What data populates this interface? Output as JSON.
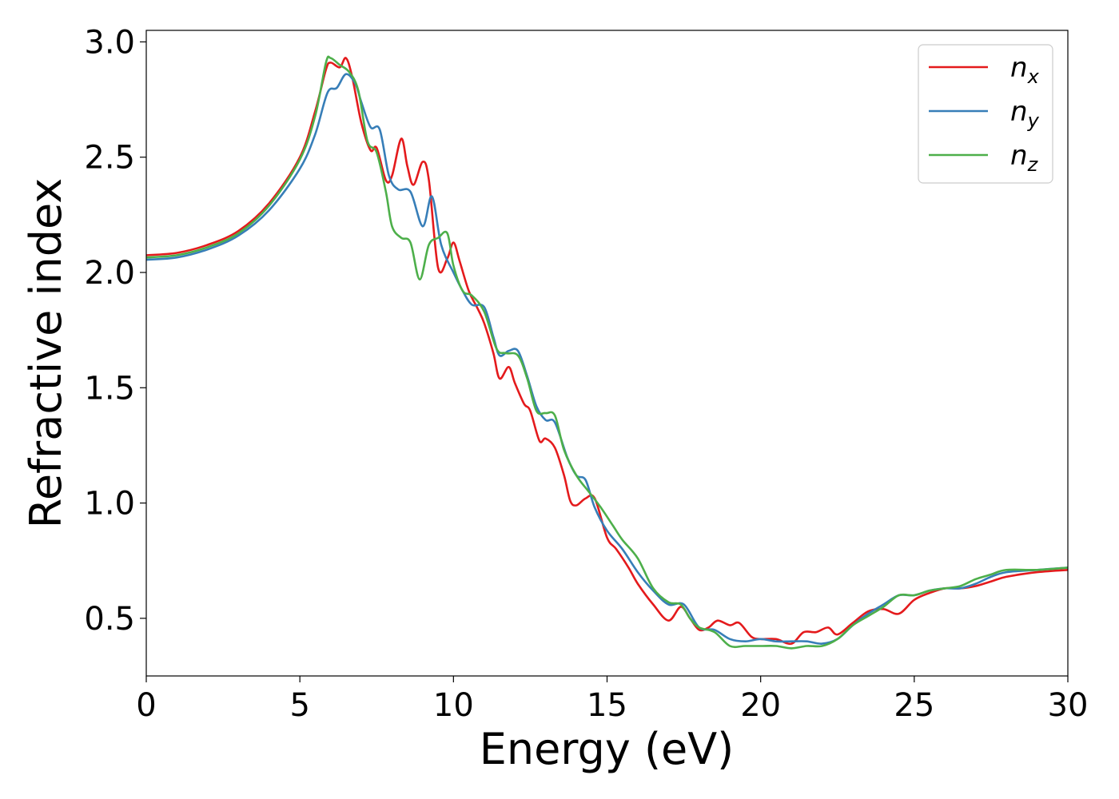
{
  "chart_data": {
    "type": "line",
    "title": "",
    "xlabel": "Energy (eV)",
    "ylabel": "Refractive index",
    "xlim": [
      0,
      30
    ],
    "ylim": [
      0.25,
      3.05
    ],
    "xticks": [
      "0",
      "5",
      "10",
      "15",
      "20",
      "25",
      "30"
    ],
    "yticks": [
      "0.5",
      "1.0",
      "1.5",
      "2.0",
      "2.5",
      "3.0"
    ],
    "grid": false,
    "legend_position": "top-right",
    "series": [
      {
        "name": "n",
        "subscript": "x",
        "color": "#e41a1c",
        "points": [
          [
            0,
            2.075
          ],
          [
            1,
            2.085
          ],
          [
            2,
            2.12
          ],
          [
            3,
            2.18
          ],
          [
            4,
            2.3
          ],
          [
            5,
            2.5
          ],
          [
            5.5,
            2.7
          ],
          [
            5.85,
            2.88
          ],
          [
            6.0,
            2.91
          ],
          [
            6.3,
            2.89
          ],
          [
            6.5,
            2.93
          ],
          [
            6.7,
            2.85
          ],
          [
            7.0,
            2.65
          ],
          [
            7.3,
            2.53
          ],
          [
            7.5,
            2.54
          ],
          [
            7.8,
            2.4
          ],
          [
            8.0,
            2.42
          ],
          [
            8.3,
            2.58
          ],
          [
            8.5,
            2.46
          ],
          [
            8.7,
            2.38
          ],
          [
            9.0,
            2.48
          ],
          [
            9.2,
            2.4
          ],
          [
            9.5,
            2.02
          ],
          [
            9.8,
            2.06
          ],
          [
            10.0,
            2.13
          ],
          [
            10.2,
            2.05
          ],
          [
            10.5,
            1.92
          ],
          [
            10.8,
            1.84
          ],
          [
            11.0,
            1.78
          ],
          [
            11.3,
            1.65
          ],
          [
            11.5,
            1.54
          ],
          [
            11.8,
            1.59
          ],
          [
            12.0,
            1.52
          ],
          [
            12.3,
            1.43
          ],
          [
            12.5,
            1.4
          ],
          [
            12.8,
            1.27
          ],
          [
            13.0,
            1.28
          ],
          [
            13.3,
            1.24
          ],
          [
            13.6,
            1.12
          ],
          [
            13.8,
            1.01
          ],
          [
            14.0,
            0.99
          ],
          [
            14.3,
            1.02
          ],
          [
            14.6,
            1.02
          ],
          [
            15.0,
            0.85
          ],
          [
            15.3,
            0.8
          ],
          [
            15.7,
            0.72
          ],
          [
            16.0,
            0.65
          ],
          [
            16.5,
            0.56
          ],
          [
            17.0,
            0.49
          ],
          [
            17.4,
            0.55
          ],
          [
            17.7,
            0.5
          ],
          [
            18.0,
            0.45
          ],
          [
            18.3,
            0.46
          ],
          [
            18.6,
            0.49
          ],
          [
            19.0,
            0.47
          ],
          [
            19.3,
            0.48
          ],
          [
            19.7,
            0.42
          ],
          [
            20.0,
            0.41
          ],
          [
            20.5,
            0.41
          ],
          [
            21.0,
            0.39
          ],
          [
            21.4,
            0.44
          ],
          [
            21.8,
            0.44
          ],
          [
            22.2,
            0.46
          ],
          [
            22.5,
            0.43
          ],
          [
            23.0,
            0.48
          ],
          [
            23.5,
            0.53
          ],
          [
            24.0,
            0.54
          ],
          [
            24.5,
            0.52
          ],
          [
            25.0,
            0.58
          ],
          [
            25.5,
            0.61
          ],
          [
            26.0,
            0.63
          ],
          [
            26.5,
            0.63
          ],
          [
            27.0,
            0.64
          ],
          [
            27.5,
            0.66
          ],
          [
            28.0,
            0.68
          ],
          [
            29.0,
            0.7
          ],
          [
            30.0,
            0.71
          ]
        ]
      },
      {
        "name": "n",
        "subscript": "y",
        "color": "#377eb8",
        "points": [
          [
            0,
            2.055
          ],
          [
            1,
            2.065
          ],
          [
            2,
            2.1
          ],
          [
            3,
            2.16
          ],
          [
            4,
            2.27
          ],
          [
            5,
            2.45
          ],
          [
            5.5,
            2.6
          ],
          [
            5.9,
            2.78
          ],
          [
            6.2,
            2.8
          ],
          [
            6.5,
            2.86
          ],
          [
            6.8,
            2.82
          ],
          [
            7.0,
            2.74
          ],
          [
            7.3,
            2.63
          ],
          [
            7.6,
            2.62
          ],
          [
            7.9,
            2.42
          ],
          [
            8.2,
            2.36
          ],
          [
            8.6,
            2.35
          ],
          [
            9.0,
            2.2
          ],
          [
            9.3,
            2.33
          ],
          [
            9.6,
            2.12
          ],
          [
            10.0,
            2.0
          ],
          [
            10.3,
            1.92
          ],
          [
            10.6,
            1.86
          ],
          [
            11.0,
            1.85
          ],
          [
            11.3,
            1.72
          ],
          [
            11.5,
            1.64
          ],
          [
            11.8,
            1.66
          ],
          [
            12.1,
            1.66
          ],
          [
            12.4,
            1.55
          ],
          [
            12.7,
            1.42
          ],
          [
            13.0,
            1.36
          ],
          [
            13.3,
            1.35
          ],
          [
            13.7,
            1.2
          ],
          [
            14.0,
            1.12
          ],
          [
            14.3,
            1.1
          ],
          [
            14.6,
            0.98
          ],
          [
            15.0,
            0.88
          ],
          [
            15.5,
            0.8
          ],
          [
            16.0,
            0.7
          ],
          [
            16.5,
            0.62
          ],
          [
            17.0,
            0.56
          ],
          [
            17.5,
            0.56
          ],
          [
            18.0,
            0.46
          ],
          [
            18.5,
            0.45
          ],
          [
            19.0,
            0.41
          ],
          [
            19.5,
            0.4
          ],
          [
            20.0,
            0.41
          ],
          [
            20.5,
            0.4
          ],
          [
            21.0,
            0.4
          ],
          [
            21.5,
            0.4
          ],
          [
            22.0,
            0.39
          ],
          [
            22.5,
            0.41
          ],
          [
            23.0,
            0.47
          ],
          [
            23.5,
            0.52
          ],
          [
            24.0,
            0.56
          ],
          [
            24.5,
            0.6
          ],
          [
            25.0,
            0.6
          ],
          [
            25.5,
            0.62
          ],
          [
            26.0,
            0.63
          ],
          [
            26.5,
            0.63
          ],
          [
            27.0,
            0.65
          ],
          [
            27.5,
            0.68
          ],
          [
            28.0,
            0.7
          ],
          [
            29.0,
            0.71
          ],
          [
            30.0,
            0.72
          ]
        ]
      },
      {
        "name": "n",
        "subscript": "z",
        "color": "#4daf4a",
        "points": [
          [
            0,
            2.065
          ],
          [
            1,
            2.075
          ],
          [
            2,
            2.11
          ],
          [
            3,
            2.17
          ],
          [
            4,
            2.29
          ],
          [
            5,
            2.49
          ],
          [
            5.5,
            2.68
          ],
          [
            5.85,
            2.91
          ],
          [
            6.0,
            2.93
          ],
          [
            6.3,
            2.9
          ],
          [
            6.6,
            2.87
          ],
          [
            6.9,
            2.79
          ],
          [
            7.2,
            2.57
          ],
          [
            7.5,
            2.52
          ],
          [
            7.8,
            2.35
          ],
          [
            8.0,
            2.2
          ],
          [
            8.3,
            2.15
          ],
          [
            8.6,
            2.13
          ],
          [
            8.9,
            1.97
          ],
          [
            9.2,
            2.12
          ],
          [
            9.5,
            2.15
          ],
          [
            9.8,
            2.17
          ],
          [
            10.0,
            2.03
          ],
          [
            10.3,
            1.92
          ],
          [
            10.6,
            1.9
          ],
          [
            11.0,
            1.83
          ],
          [
            11.4,
            1.67
          ],
          [
            11.7,
            1.65
          ],
          [
            12.1,
            1.64
          ],
          [
            12.4,
            1.54
          ],
          [
            12.7,
            1.4
          ],
          [
            13.0,
            1.39
          ],
          [
            13.3,
            1.38
          ],
          [
            13.6,
            1.23
          ],
          [
            14.0,
            1.12
          ],
          [
            14.4,
            1.05
          ],
          [
            14.8,
            0.98
          ],
          [
            15.2,
            0.9
          ],
          [
            15.5,
            0.84
          ],
          [
            16.0,
            0.76
          ],
          [
            16.5,
            0.63
          ],
          [
            17.0,
            0.57
          ],
          [
            17.4,
            0.56
          ],
          [
            17.7,
            0.5
          ],
          [
            18.0,
            0.46
          ],
          [
            18.5,
            0.44
          ],
          [
            19.0,
            0.38
          ],
          [
            19.5,
            0.38
          ],
          [
            20.0,
            0.38
          ],
          [
            20.5,
            0.38
          ],
          [
            21.0,
            0.37
          ],
          [
            21.5,
            0.38
          ],
          [
            22.0,
            0.38
          ],
          [
            22.5,
            0.41
          ],
          [
            23.0,
            0.47
          ],
          [
            23.5,
            0.51
          ],
          [
            24.0,
            0.55
          ],
          [
            24.5,
            0.6
          ],
          [
            25.0,
            0.6
          ],
          [
            25.5,
            0.62
          ],
          [
            26.0,
            0.63
          ],
          [
            26.5,
            0.64
          ],
          [
            27.0,
            0.67
          ],
          [
            27.5,
            0.69
          ],
          [
            28.0,
            0.71
          ],
          [
            29.0,
            0.71
          ],
          [
            30.0,
            0.72
          ]
        ]
      }
    ]
  }
}
